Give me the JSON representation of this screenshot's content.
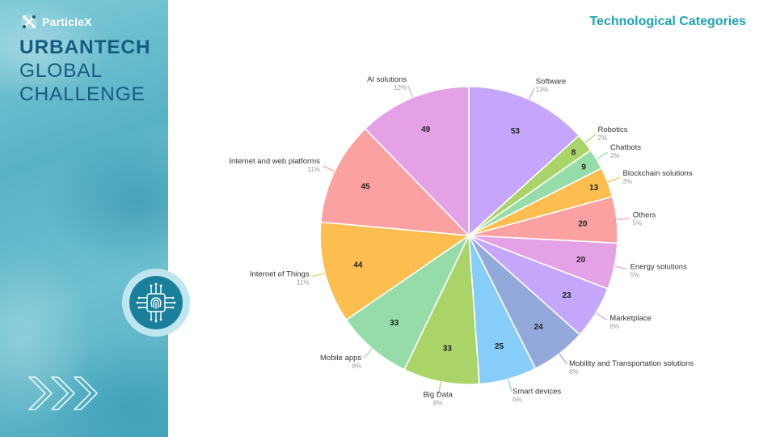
{
  "brand": {
    "logo_text": "ParticleX",
    "line1": "URBANTECH",
    "line2": "GLOBAL",
    "line3": "CHALLENGE",
    "badge_icon": "fingerprint-chip-icon",
    "decor_icon": "chevrons-right-icon"
  },
  "page": {
    "title": "Technological Categories"
  },
  "chart_data": {
    "type": "pie",
    "title": "",
    "start_angle_deg": 90,
    "direction": "clockwise",
    "legend": "none",
    "slices": [
      {
        "name": "Software",
        "value": 53,
        "percent": "13%",
        "color": "#c5a6fc"
      },
      {
        "name": "Robotics",
        "value": 8,
        "percent": "2%",
        "color": "#aad468"
      },
      {
        "name": "Chatbots",
        "value": 9,
        "percent": "2%",
        "color": "#95dca8"
      },
      {
        "name": "Blockchain solutions",
        "value": 13,
        "percent": "3%",
        "color": "#fbbe4f"
      },
      {
        "name": "Others",
        "value": 20,
        "percent": "5%",
        "color": "#fba1a1"
      },
      {
        "name": "Energy solutions",
        "value": 20,
        "percent": "5%",
        "color": "#e5a1e6"
      },
      {
        "name": "Marketplace",
        "value": 23,
        "percent": "6%",
        "color": "#c4a7fb"
      },
      {
        "name": "Mobility and Transportation solutions",
        "value": 24,
        "percent": "6%",
        "color": "#93a9db"
      },
      {
        "name": "Smart devices",
        "value": 25,
        "percent": "6%",
        "color": "#86cdfa"
      },
      {
        "name": "Big Data",
        "value": 33,
        "percent": "8%",
        "color": "#aad468"
      },
      {
        "name": "Mobile apps",
        "value": 33,
        "percent": "8%",
        "color": "#95dca8"
      },
      {
        "name": "Internet of Things",
        "value": 44,
        "percent": "11%",
        "color": "#fbbe4f"
      },
      {
        "name": "Internet and web platforms",
        "value": 45,
        "percent": "11%",
        "color": "#fba1a1"
      },
      {
        "name": "AI solutions",
        "value": 49,
        "percent": "12%",
        "color": "#e5a1e6"
      }
    ]
  }
}
